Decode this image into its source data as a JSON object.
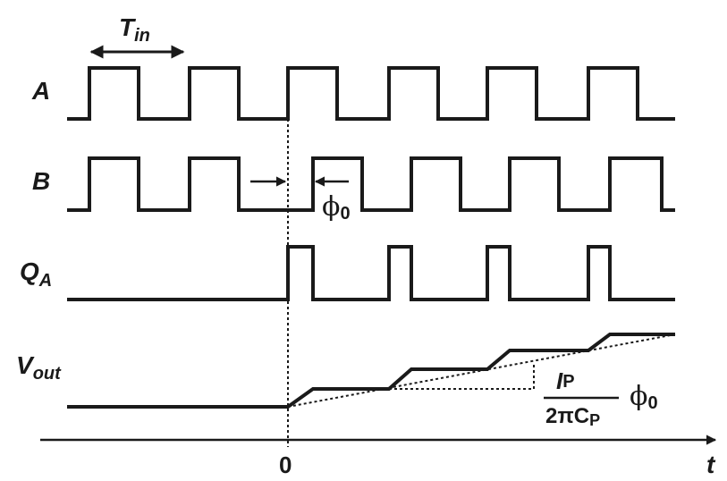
{
  "signals": {
    "a": {
      "label": "A"
    },
    "b": {
      "label": "B"
    },
    "qa": {
      "label": "Q",
      "subscript": "A"
    },
    "vout": {
      "label": "V",
      "subscript": "out"
    }
  },
  "period_label": {
    "main": "T",
    "subscript": "in"
  },
  "phase": {
    "symbol": "ϕ",
    "subscript": "0"
  },
  "gain_formula": {
    "numerator": "I",
    "numerator_sub": "P",
    "denominator": "2πC",
    "denominator_sub": "P",
    "factor": "ϕ",
    "factor_sub": "0"
  },
  "time_axis": {
    "origin_label": "0",
    "label": "t"
  }
}
